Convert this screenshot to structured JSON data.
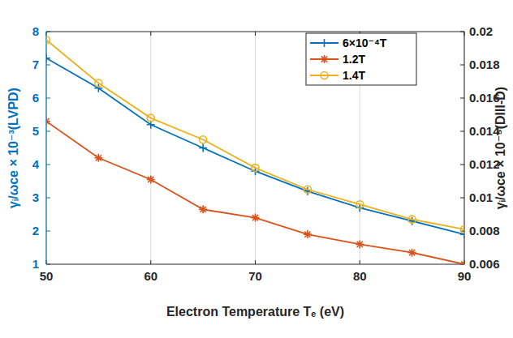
{
  "chart_data": {
    "type": "line",
    "x_label": "Electron Temperature Tₑ (eV)",
    "y_label": "γᵢ/ωce × 10⁻³(LVPD)",
    "y2_label": "γᵢ/ωce × 10⁻⁵(DIII-D)",
    "x": [
      50,
      55,
      60,
      65,
      70,
      75,
      80,
      85,
      90
    ],
    "xlim": [
      50,
      90
    ],
    "xticks": [
      50,
      60,
      70,
      80,
      90
    ],
    "ylim": [
      1,
      8
    ],
    "yticks": [
      1,
      2,
      3,
      4,
      5,
      6,
      7,
      8
    ],
    "y2lim": [
      0.006,
      0.02
    ],
    "y2ticks": [
      0.006,
      0.008,
      0.01,
      0.012,
      0.014,
      0.016,
      0.018,
      0.02
    ],
    "grid": "x",
    "legend": "upper right",
    "series": [
      {
        "name": "6×10⁻⁴T",
        "color": "#0072bd",
        "marker": "plus",
        "values": [
          7.2,
          6.3,
          5.2,
          4.5,
          3.8,
          3.2,
          2.7,
          2.3,
          1.9
        ]
      },
      {
        "name": "1.2T",
        "color": "#d95319",
        "marker": "asterisk",
        "axis": "y2",
        "values": [
          0.0146,
          0.0124,
          0.0111,
          0.0093,
          0.0088,
          0.0078,
          0.0072,
          0.0067,
          0.006
        ]
      },
      {
        "name": "1.4T",
        "color": "#edb120",
        "marker": "circle",
        "axis": "y2",
        "values": [
          0.0195,
          0.0169,
          0.0148,
          0.0135,
          0.0118,
          0.0105,
          0.0096,
          0.0087,
          0.0081
        ]
      }
    ]
  }
}
